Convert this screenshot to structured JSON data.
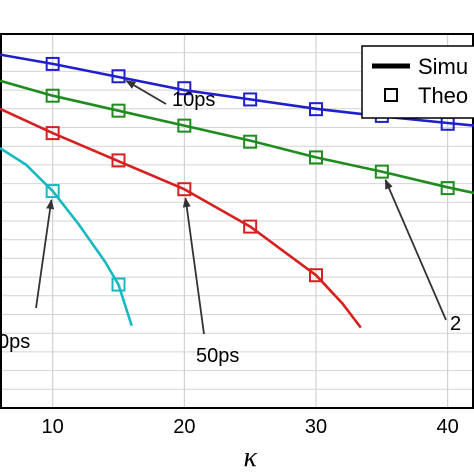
{
  "chart_data": {
    "type": "line",
    "xlabel": "κ",
    "ylabel": "",
    "xlim": [
      6,
      42
    ],
    "ylim": [
      0,
      10
    ],
    "grid": true,
    "legend": {
      "placement": "top-right",
      "entries": [
        {
          "label": "Simu",
          "style": "line"
        },
        {
          "label": "Theo",
          "style": "square-marker"
        }
      ]
    },
    "x_ticks": [
      10,
      20,
      30,
      40
    ],
    "x_tick_labels": [
      "10",
      "20",
      "30",
      "40"
    ],
    "series": [
      {
        "color": "#1f1fcc",
        "curve": [
          [
            6,
            9.45
          ],
          [
            10,
            9.2
          ],
          [
            15,
            8.85
          ],
          [
            20,
            8.5
          ],
          [
            25,
            8.25
          ],
          [
            30,
            8.0
          ],
          [
            35,
            7.8
          ],
          [
            40,
            7.62
          ],
          [
            42,
            7.55
          ]
        ],
        "markers": [
          [
            10,
            9.2
          ],
          [
            15,
            8.87
          ],
          [
            20,
            8.55
          ],
          [
            25,
            8.25
          ],
          [
            30,
            7.99
          ],
          [
            35,
            7.81
          ],
          [
            40,
            7.6
          ]
        ]
      },
      {
        "color": "#1e8c1e",
        "curve": [
          [
            6,
            8.75
          ],
          [
            10,
            8.35
          ],
          [
            15,
            7.95
          ],
          [
            20,
            7.55
          ],
          [
            25,
            7.15
          ],
          [
            30,
            6.7
          ],
          [
            35,
            6.32
          ],
          [
            40,
            5.9
          ],
          [
            42,
            5.75
          ]
        ],
        "markers": [
          [
            10,
            8.35
          ],
          [
            15,
            7.95
          ],
          [
            20,
            7.55
          ],
          [
            25,
            7.12
          ],
          [
            30,
            6.7
          ],
          [
            35,
            6.32
          ],
          [
            40,
            5.88
          ]
        ]
      },
      {
        "color": "#d62020",
        "curve": [
          [
            6,
            8.0
          ],
          [
            10,
            7.35
          ],
          [
            15,
            6.6
          ],
          [
            20,
            5.85
          ],
          [
            25,
            4.85
          ],
          [
            30,
            3.55
          ],
          [
            32,
            2.8
          ],
          [
            33.4,
            2.15
          ]
        ],
        "markers": [
          [
            10,
            7.35
          ],
          [
            15,
            6.62
          ],
          [
            20,
            5.85
          ],
          [
            25,
            4.85
          ],
          [
            30,
            3.55
          ]
        ]
      },
      {
        "color": "#18b8c0",
        "curve": [
          [
            6,
            6.95
          ],
          [
            8,
            6.5
          ],
          [
            10,
            5.8
          ],
          [
            12,
            4.9
          ],
          [
            14,
            3.9
          ],
          [
            15,
            3.3
          ],
          [
            16,
            2.2
          ]
        ],
        "markers": [
          [
            10,
            5.8
          ],
          [
            15,
            3.3
          ]
        ]
      }
    ],
    "annotations": [
      {
        "text": "10ps",
        "arrow_to": [
          15,
          8.87
        ]
      },
      {
        "text": "2",
        "arrow_to": [
          35,
          6.32
        ]
      },
      {
        "text": "50ps",
        "arrow_to": [
          20,
          5.85
        ]
      },
      {
        "text": "0ps",
        "arrow_to": [
          10,
          5.8
        ]
      }
    ]
  }
}
